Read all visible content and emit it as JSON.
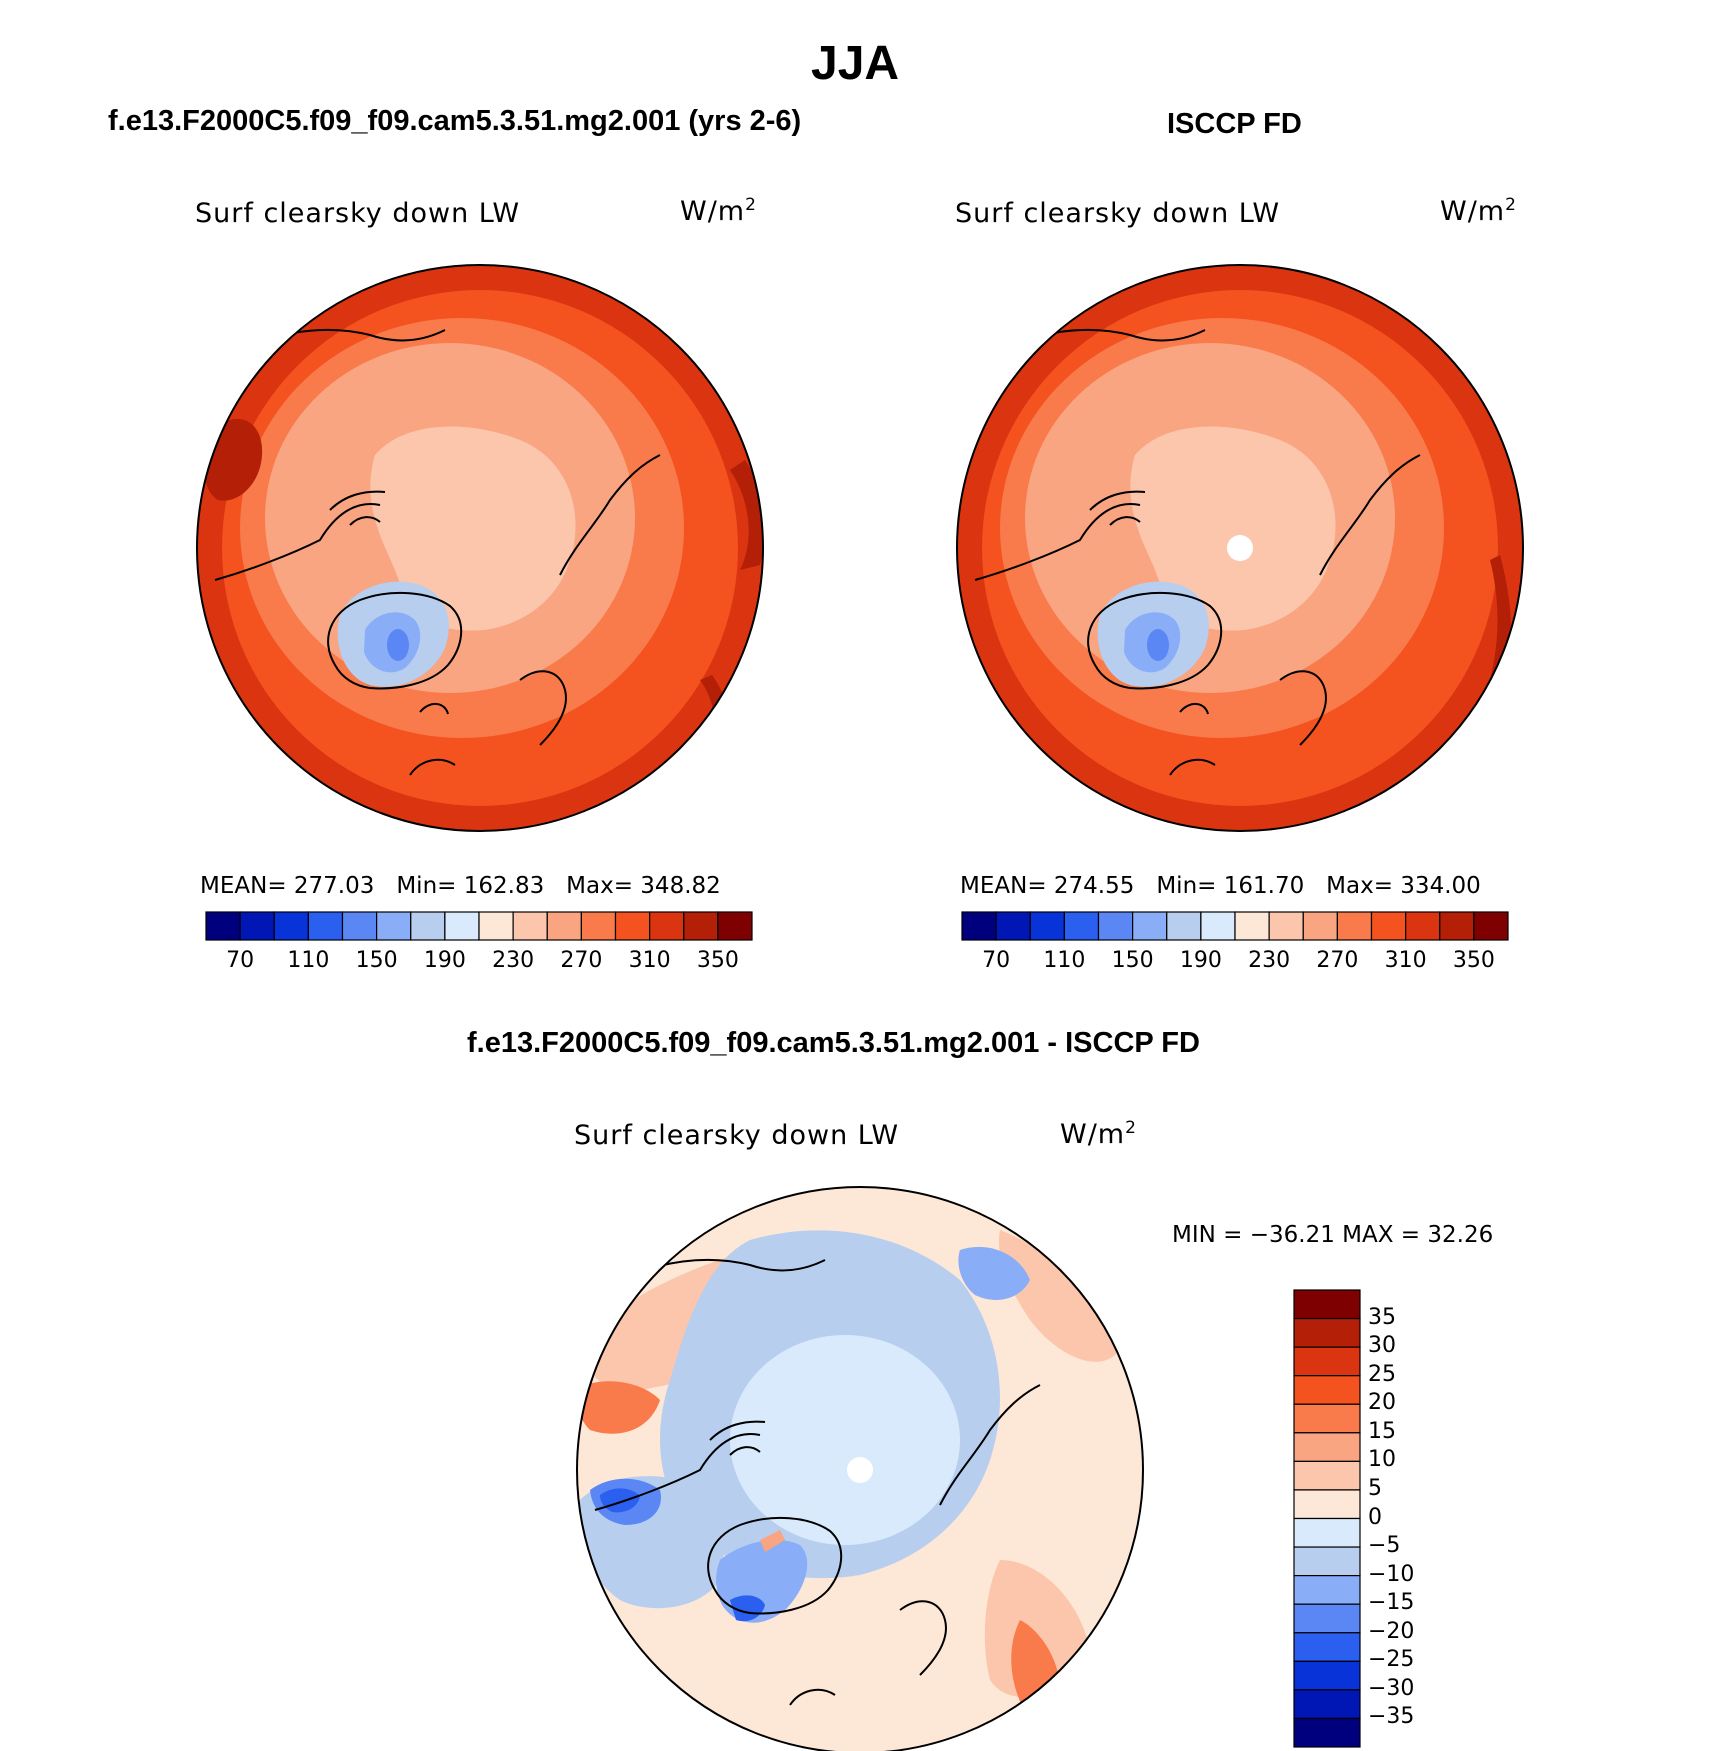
{
  "figure": {
    "season_title": "JJA",
    "panels": [
      {
        "case_title": "f.e13.F2000C5.f09_f09.cam5.3.51.mg2.001 (yrs 2-6)",
        "variable_label": "Surf clearsky down LW",
        "units_base": "W/m",
        "units_exp": "2",
        "stats": {
          "mean_label": "MEAN=",
          "mean": "277.03",
          "min_label": "Min=",
          "min": "162.83",
          "max_label": "Max=",
          "max": "348.82"
        },
        "projection": "north-polar-stereographic",
        "polar_hole": false
      },
      {
        "case_title": "ISCCP FD",
        "variable_label": "Surf clearsky down LW",
        "units_base": "W/m",
        "units_exp": "2",
        "stats": {
          "mean_label": "MEAN=",
          "mean": "274.55",
          "min_label": "Min=",
          "min": "161.70",
          "max_label": "Max=",
          "max": "334.00"
        },
        "projection": "north-polar-stereographic",
        "polar_hole": true
      }
    ],
    "field_colorbar": {
      "orientation": "horizontal",
      "colors": [
        "#00007f",
        "#0016b5",
        "#0733d8",
        "#2a5ff0",
        "#5b87f5",
        "#8aadf8",
        "#b8ceef",
        "#d8eafc",
        "#fde7d7",
        "#fbc6ab",
        "#f9a582",
        "#f97a4a",
        "#f4521f",
        "#da3410",
        "#b31f07",
        "#7f0000"
      ],
      "tick_labels": [
        "70",
        "110",
        "150",
        "190",
        "230",
        "270",
        "310",
        "350"
      ]
    },
    "difference_panel": {
      "case_title": "f.e13.F2000C5.f09_f09.cam5.3.51.mg2.001 - ISCCP FD",
      "variable_label": "Surf clearsky down LW",
      "units_base": "W/m",
      "units_exp": "2",
      "stats_text": "MIN = −36.21 MAX =  32.26",
      "polar_hole": true
    },
    "difference_colorbar": {
      "orientation": "vertical",
      "colors": [
        "#7f0000",
        "#b31f07",
        "#da3410",
        "#f4521f",
        "#f97a4a",
        "#f9a582",
        "#fbc6ab",
        "#fde7d7",
        "#d8eafc",
        "#b8ceef",
        "#8aadf8",
        "#5b87f5",
        "#2a5ff0",
        "#0733d8",
        "#0016b5",
        "#00007f"
      ],
      "tick_labels": [
        "35",
        "30",
        "25",
        "20",
        "15",
        "10",
        "5",
        "0",
        "−5",
        "−10",
        "−15",
        "−20",
        "−25",
        "−30",
        "−35"
      ]
    },
    "colors": {
      "land_outline": "#000000",
      "background": "#ffffff"
    }
  }
}
